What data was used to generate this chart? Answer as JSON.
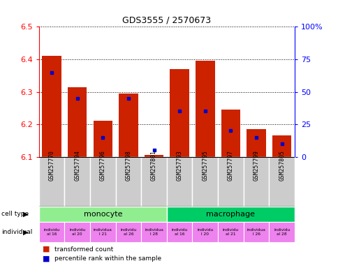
{
  "title": "GDS3555 / 2570673",
  "samples": [
    "GSM257770",
    "GSM257794",
    "GSM257796",
    "GSM257798",
    "GSM257801",
    "GSM257793",
    "GSM257795",
    "GSM257797",
    "GSM257799",
    "GSM257805"
  ],
  "transformed_counts": [
    6.41,
    6.315,
    6.21,
    6.295,
    6.105,
    6.37,
    6.395,
    6.245,
    6.185,
    6.165
  ],
  "percentile_ranks": [
    65,
    45,
    15,
    45,
    5,
    35,
    35,
    20,
    15,
    10
  ],
  "ylim_left": [
    6.1,
    6.5
  ],
  "ylim_right": [
    0,
    100
  ],
  "yticks_left": [
    6.1,
    6.2,
    6.3,
    6.4,
    6.5
  ],
  "yticks_right": [
    0,
    25,
    50,
    75,
    100
  ],
  "ytick_labels_right": [
    "0",
    "25",
    "50",
    "75",
    "100%"
  ],
  "cell_types": [
    {
      "label": "monocyte",
      "start": 0,
      "end": 5,
      "color": "#90EE90"
    },
    {
      "label": "macrophage",
      "start": 5,
      "end": 10,
      "color": "#00CC66"
    }
  ],
  "bar_color_red": "#CC2200",
  "bar_color_blue": "#0000CC",
  "bar_width": 0.75,
  "base_value": 6.1,
  "bg_color_sample": "#CCCCCC",
  "dotted_line_color": "#333333",
  "tick_fontsize": 8,
  "ind_labels": [
    "individu\nal 16",
    "individu\nal 20",
    "individua\nl 21",
    "individu\nal 26",
    "individua\nl 28",
    "individu\nal 16",
    "individu\nl 20",
    "individu\nal 21",
    "individua\nl 26",
    "individu\nal 28"
  ],
  "ind_bg_colors": [
    "#EE82EE",
    "#EE82EE",
    "#EE82EE",
    "#EE82EE",
    "#EE82EE",
    "#EE82EE",
    "#EE82EE",
    "#EE82EE",
    "#EE82EE",
    "#EE82EE"
  ]
}
